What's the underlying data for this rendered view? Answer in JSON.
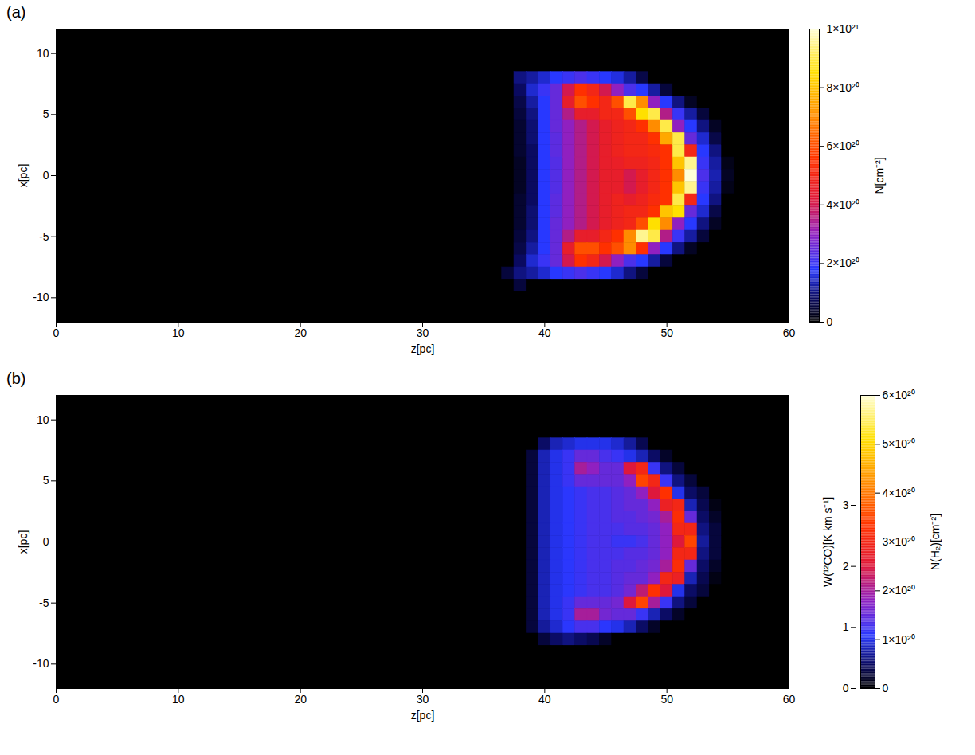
{
  "chart_data": [
    {
      "type": "heatmap",
      "title": "(a)",
      "x_label": "z[pc]",
      "y_label": "x[pc]",
      "xlim": [
        0,
        60
      ],
      "xticks": [
        0,
        10,
        20,
        30,
        40,
        50,
        60
      ],
      "ylim": [
        -12,
        12
      ],
      "yticks": [
        -10,
        -5,
        0,
        5,
        10
      ],
      "x": [
        37,
        38,
        39,
        40,
        41,
        42,
        43,
        44,
        45,
        46,
        47,
        48,
        49,
        50,
        51,
        52,
        53,
        54,
        55
      ],
      "y": [
        9,
        8,
        7,
        6,
        5,
        4,
        3,
        2,
        1,
        0,
        -1,
        -2,
        -3,
        -4,
        -5,
        -6,
        -7,
        -8,
        -9
      ],
      "values": [
        [
          0,
          0,
          0,
          0,
          0,
          0,
          0,
          0,
          0,
          0,
          0,
          0,
          0,
          0,
          0,
          0,
          0,
          0,
          0
        ],
        [
          0,
          1e+20,
          1.2e+20,
          1.5e+20,
          1.8e+20,
          2e+20,
          2.2e+20,
          2e+20,
          1.8e+20,
          1.6e+20,
          1.2e+20,
          6e+19,
          0,
          0,
          0,
          0,
          0,
          0,
          0
        ],
        [
          0,
          8e+19,
          1.5e+20,
          2e+20,
          2.5e+20,
          4e+20,
          5.5e+20,
          5e+20,
          4e+20,
          3e+20,
          2.2e+20,
          1.8e+20,
          1.2e+20,
          5e+19,
          0,
          0,
          0,
          0,
          0
        ],
        [
          0,
          6e+19,
          1.2e+20,
          1.8e+20,
          2.5e+20,
          4.5e+20,
          6e+20,
          5.5e+20,
          5e+20,
          6e+20,
          9e+20,
          7e+20,
          3e+20,
          1.8e+20,
          1e+20,
          3e+19,
          0,
          0,
          0
        ],
        [
          0,
          5e+19,
          1e+20,
          1.8e+20,
          2.5e+20,
          3.5e+20,
          4.5e+20,
          4.5e+20,
          5e+20,
          5e+20,
          6e+20,
          8.5e+20,
          9e+20,
          3.5e+20,
          2e+20,
          1.2e+20,
          5e+19,
          0,
          0
        ],
        [
          0,
          4e+19,
          9e+19,
          1.8e+20,
          2.5e+20,
          3e+20,
          3.5e+20,
          4e+20,
          4.5e+20,
          4.8e+20,
          5e+20,
          5.5e+20,
          7e+20,
          9e+20,
          3e+20,
          1.8e+20,
          1e+20,
          3e+19,
          0
        ],
        [
          0,
          4e+19,
          9e+19,
          1.8e+20,
          2.4e+20,
          3e+20,
          3.5e+20,
          4e+20,
          4.5e+20,
          4.8e+20,
          5e+20,
          5e+20,
          5.5e+20,
          7.5e+20,
          9e+20,
          2.5e+20,
          1.5e+20,
          6e+19,
          0
        ],
        [
          0,
          4e+19,
          8e+19,
          1.8e+20,
          2.4e+20,
          3e+20,
          3.5e+20,
          4e+20,
          4.5e+20,
          4.8e+20,
          5e+20,
          5e+20,
          5.2e+20,
          5.5e+20,
          9e+20,
          5e+20,
          1.8e+20,
          1e+20,
          0
        ],
        [
          0,
          3e+19,
          8e+19,
          1.8e+20,
          2.3e+20,
          3e+20,
          3.5e+20,
          4e+20,
          4.5e+20,
          4.6e+20,
          4.8e+20,
          4.8e+20,
          5e+20,
          5.5e+20,
          8e+20,
          9.5e+20,
          2e+20,
          1.2e+20,
          2e+19
        ],
        [
          0,
          3e+19,
          8e+19,
          1.8e+20,
          2.3e+20,
          3e+20,
          3.5e+20,
          4e+20,
          4.5e+20,
          4.5e+20,
          4e+20,
          4.5e+20,
          5e+20,
          5.5e+20,
          7e+20,
          1e+21,
          2.2e+20,
          1.3e+20,
          3e+19
        ],
        [
          0,
          3e+19,
          8e+19,
          1.8e+20,
          2.3e+20,
          3e+20,
          3.5e+20,
          4e+20,
          4.5e+20,
          4.5e+20,
          4e+20,
          4.5e+20,
          5e+20,
          5.5e+20,
          8e+20,
          9.5e+20,
          2e+20,
          1.2e+20,
          2e+19
        ],
        [
          0,
          4e+19,
          8e+19,
          1.8e+20,
          2.4e+20,
          3e+20,
          3.5e+20,
          4e+20,
          4.5e+20,
          4.8e+20,
          4.5e+20,
          4.8e+20,
          5.2e+20,
          5.5e+20,
          9e+20,
          5e+20,
          1.8e+20,
          1e+20,
          0
        ],
        [
          0,
          4e+19,
          9e+19,
          1.8e+20,
          2.4e+20,
          3e+20,
          3.5e+20,
          4e+20,
          4.5e+20,
          4.8e+20,
          5e+20,
          5e+20,
          5.5e+20,
          8e+20,
          8.5e+20,
          2.5e+20,
          1.5e+20,
          6e+19,
          0
        ],
        [
          0,
          4e+19,
          9e+19,
          1.8e+20,
          2.5e+20,
          3e+20,
          3.5e+20,
          4e+20,
          4.5e+20,
          4.8e+20,
          5e+20,
          6e+20,
          8.5e+20,
          7e+20,
          3e+20,
          1.8e+20,
          1e+20,
          3e+19,
          0
        ],
        [
          0,
          5e+19,
          1e+20,
          1.8e+20,
          2.5e+20,
          3.5e+20,
          4.5e+20,
          4.5e+20,
          5e+20,
          5.5e+20,
          7e+20,
          9.5e+20,
          9e+20,
          3.5e+20,
          2e+20,
          1.2e+20,
          5e+19,
          0,
          0
        ],
        [
          0,
          6e+19,
          1.2e+20,
          1.8e+20,
          2.5e+20,
          4.5e+20,
          6e+20,
          6e+20,
          5.5e+20,
          6e+20,
          7e+20,
          5.5e+20,
          3e+20,
          1.8e+20,
          1e+20,
          3e+19,
          0,
          0,
          0
        ],
        [
          0,
          8e+19,
          1.5e+20,
          2e+20,
          2.5e+20,
          4e+20,
          5.5e+20,
          5e+20,
          4e+20,
          3e+20,
          2.2e+20,
          1.8e+20,
          1.2e+20,
          5e+19,
          0,
          0,
          0,
          0,
          0
        ],
        [
          5e+19,
          1e+20,
          1.2e+20,
          1.5e+20,
          1.8e+20,
          2e+20,
          2.2e+20,
          2e+20,
          1.8e+20,
          1.5e+20,
          1e+20,
          5e+19,
          0,
          0,
          0,
          0,
          0,
          0,
          0
        ],
        [
          0,
          5e+19,
          0,
          0,
          0,
          0,
          0,
          0,
          0,
          0,
          0,
          0,
          0,
          0,
          0,
          0,
          0,
          0,
          0
        ]
      ],
      "colorbar": {
        "label": "N[cm⁻²]",
        "range": [
          0,
          1e+21
        ],
        "ticks": [
          0,
          {
            "value": 2e+20,
            "label": "2×10²⁰"
          },
          {
            "value": 4e+20,
            "label": "4×10²⁰"
          },
          {
            "value": 6e+20,
            "label": "6×10²⁰"
          },
          {
            "value": 8e+20,
            "label": "8×10²⁰"
          },
          {
            "value": 1e+21,
            "label": "1×10²¹"
          }
        ]
      }
    },
    {
      "type": "heatmap",
      "title": "(b)",
      "x_label": "z[pc]",
      "y_label": "x[pc]",
      "xlim": [
        0,
        60
      ],
      "xticks": [
        0,
        10,
        20,
        30,
        40,
        50,
        60
      ],
      "ylim": [
        -12,
        12
      ],
      "yticks": [
        -10,
        -5,
        0,
        5,
        10
      ],
      "x": [
        37,
        38,
        39,
        40,
        41,
        42,
        43,
        44,
        45,
        46,
        47,
        48,
        49,
        50,
        51,
        52,
        53,
        54,
        55
      ],
      "y": [
        9,
        8,
        7,
        6,
        5,
        4,
        3,
        2,
        1,
        0,
        -1,
        -2,
        -3,
        -4,
        -5,
        -6,
        -7,
        -8,
        -9
      ],
      "values": [
        [
          0,
          0,
          0,
          0,
          0,
          0,
          0,
          0,
          0,
          0,
          0,
          0,
          0,
          0,
          0,
          0,
          0,
          0,
          0
        ],
        [
          0,
          0,
          0,
          5e+19,
          8e+19,
          9e+19,
          1e+20,
          1e+20,
          1e+20,
          9e+19,
          7e+19,
          4e+19,
          0,
          0,
          0,
          0,
          0,
          0,
          0
        ],
        [
          0,
          0,
          3e+19,
          8e+19,
          1e+20,
          1.2e+20,
          1.5e+20,
          1.5e+20,
          1.3e+20,
          1.2e+20,
          1e+20,
          8e+19,
          5e+19,
          2e+19,
          0,
          0,
          0,
          0,
          0
        ],
        [
          0,
          0,
          3e+19,
          8e+19,
          1e+20,
          1.2e+20,
          2e+20,
          1.8e+20,
          1.5e+20,
          1.5e+20,
          2.5e+20,
          3e+20,
          1.2e+20,
          6e+19,
          3e+19,
          0,
          0,
          0,
          0
        ],
        [
          0,
          0,
          3e+19,
          8e+19,
          1e+20,
          1.2e+20,
          1.5e+20,
          1.5e+20,
          1.5e+20,
          1.5e+20,
          1.8e+20,
          3.5e+20,
          3e+20,
          1.2e+20,
          6e+19,
          3e+19,
          0,
          0,
          0
        ],
        [
          0,
          0,
          3e+19,
          8e+19,
          1e+20,
          1.1e+20,
          1.2e+20,
          1.3e+20,
          1.3e+20,
          1.4e+20,
          1.5e+20,
          1.8e+20,
          2.5e+20,
          3.3e+20,
          1e+20,
          5e+19,
          3e+19,
          0,
          0
        ],
        [
          0,
          0,
          3e+19,
          8e+19,
          1e+20,
          1.1e+20,
          1.2e+20,
          1.3e+20,
          1.3e+20,
          1.4e+20,
          1.5e+20,
          1.5e+20,
          1.8e+20,
          2.8e+20,
          3e+20,
          8e+19,
          4e+19,
          1e+19,
          0
        ],
        [
          0,
          0,
          3e+19,
          8e+19,
          1e+20,
          1.1e+20,
          1.2e+20,
          1.3e+20,
          1.3e+20,
          1.4e+20,
          1.4e+20,
          1.5e+20,
          1.6e+20,
          2e+20,
          3.2e+20,
          1.5e+20,
          5e+19,
          2e+19,
          0
        ],
        [
          0,
          0,
          3e+19,
          8e+19,
          1e+20,
          1.1e+20,
          1.2e+20,
          1.3e+20,
          1.3e+20,
          1.3e+20,
          1.4e+20,
          1.4e+20,
          1.5e+20,
          1.8e+20,
          3e+20,
          3e+20,
          6e+19,
          3e+19,
          0
        ],
        [
          0,
          0,
          3e+19,
          8e+19,
          1e+20,
          1.1e+20,
          1.2e+20,
          1.3e+20,
          1.3e+20,
          1.2e+20,
          1.2e+20,
          1.3e+20,
          1.5e+20,
          1.8e+20,
          2.5e+20,
          3.5e+20,
          7e+19,
          3e+19,
          0
        ],
        [
          0,
          0,
          3e+19,
          8e+19,
          1e+20,
          1.1e+20,
          1.2e+20,
          1.3e+20,
          1.3e+20,
          1.3e+20,
          1.4e+20,
          1.4e+20,
          1.5e+20,
          1.8e+20,
          3e+20,
          3e+20,
          6e+19,
          3e+19,
          0
        ],
        [
          0,
          0,
          3e+19,
          8e+19,
          1e+20,
          1.1e+20,
          1.2e+20,
          1.3e+20,
          1.3e+20,
          1.4e+20,
          1.4e+20,
          1.5e+20,
          1.6e+20,
          2e+20,
          3.2e+20,
          1.5e+20,
          5e+19,
          2e+19,
          0
        ],
        [
          0,
          0,
          3e+19,
          8e+19,
          1e+20,
          1.1e+20,
          1.2e+20,
          1.3e+20,
          1.3e+20,
          1.4e+20,
          1.5e+20,
          1.5e+20,
          1.8e+20,
          3e+20,
          2.8e+20,
          8e+19,
          4e+19,
          1e+19,
          0
        ],
        [
          0,
          0,
          3e+19,
          8e+19,
          1e+20,
          1.1e+20,
          1.2e+20,
          1.3e+20,
          1.3e+20,
          1.4e+20,
          1.6e+20,
          2.2e+20,
          3.3e+20,
          2.5e+20,
          1e+20,
          5e+19,
          3e+19,
          0,
          0
        ],
        [
          0,
          0,
          3e+19,
          8e+19,
          1e+20,
          1.2e+20,
          1.5e+20,
          1.5e+20,
          1.5e+20,
          1.6e+20,
          2.5e+20,
          3.5e+20,
          2e+20,
          1.2e+20,
          6e+19,
          3e+19,
          0,
          0,
          0
        ],
        [
          0,
          0,
          3e+19,
          8e+19,
          1e+20,
          1.2e+20,
          2e+20,
          2e+20,
          1.6e+20,
          1.5e+20,
          1.5e+20,
          1.2e+20,
          8e+19,
          5e+19,
          2e+19,
          0,
          0,
          0,
          0
        ],
        [
          0,
          0,
          3e+19,
          7e+19,
          9e+19,
          1.1e+20,
          1.3e+20,
          1.3e+20,
          1.1e+20,
          1e+20,
          8e+19,
          5e+19,
          2e+19,
          0,
          0,
          0,
          0,
          0,
          0
        ],
        [
          0,
          0,
          0,
          3e+19,
          5e+19,
          6e+19,
          5e+19,
          4e+19,
          2e+19,
          0,
          0,
          0,
          0,
          0,
          0,
          0,
          0,
          0,
          0
        ],
        [
          0,
          0,
          0,
          0,
          0,
          0,
          0,
          0,
          0,
          0,
          0,
          0,
          0,
          0,
          0,
          0,
          0,
          0,
          0
        ]
      ],
      "colorbar": {
        "label": "N(H₂)[cm⁻²]",
        "range": [
          0,
          6e+20
        ],
        "ticks": [
          0,
          {
            "value": 1e+20,
            "label": "1×10²⁰"
          },
          {
            "value": 2e+20,
            "label": "2×10²⁰"
          },
          {
            "value": 3e+20,
            "label": "3×10²⁰"
          },
          {
            "value": 4e+20,
            "label": "4×10²⁰"
          },
          {
            "value": 5e+20,
            "label": "5×10²⁰"
          },
          {
            "value": 6e+20,
            "label": "6×10²⁰"
          }
        ]
      },
      "colorbar2": {
        "label": "W(¹²CO)[K km s⁻¹]",
        "range": [
          0,
          4.8
        ],
        "ticks": [
          0,
          1,
          2,
          3
        ]
      }
    }
  ]
}
